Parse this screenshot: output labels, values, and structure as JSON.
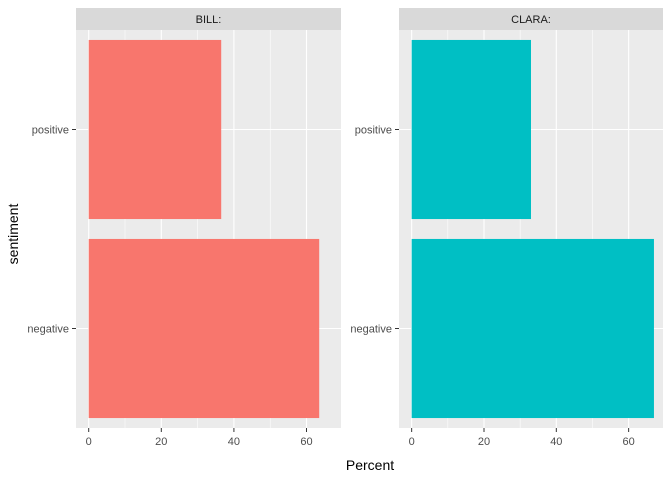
{
  "chart_data": {
    "type": "bar",
    "orientation": "horizontal",
    "xlabel": "Percent",
    "ylabel": "sentiment",
    "categories": [
      "negative",
      "positive"
    ],
    "xlim": [
      -3.5,
      69.5
    ],
    "x_ticks": [
      0,
      20,
      40,
      60
    ],
    "grid": true,
    "facets": [
      {
        "strip": "BILL:",
        "color": "#F8766D",
        "values": {
          "negative": 63.5,
          "positive": 36.5
        }
      },
      {
        "strip": "CLARA:",
        "color": "#00BFC4",
        "values": {
          "negative": 67,
          "positive": 33
        }
      }
    ]
  }
}
